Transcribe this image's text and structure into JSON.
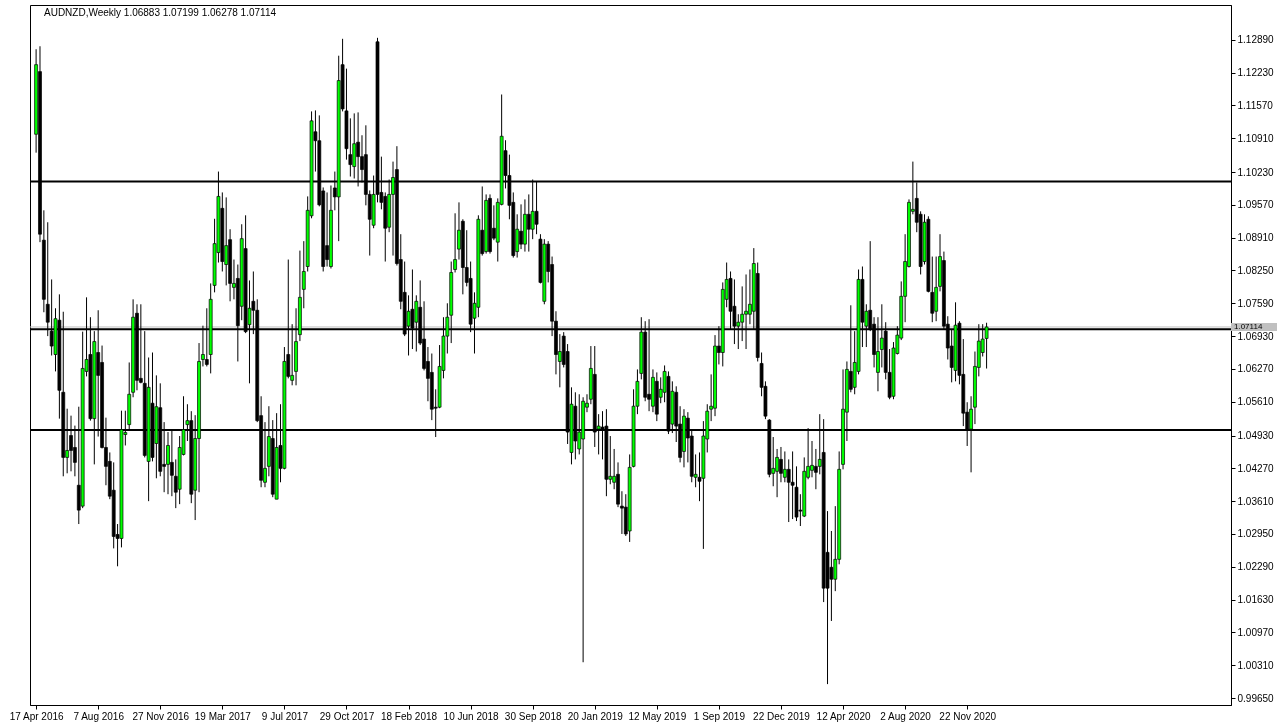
{
  "chart_data": {
    "type": "candlestick",
    "title": "AUDNZD,Weekly  1.06883 1.07199 1.06278 1.07114",
    "colors": [
      "#00ff00",
      "#000000",
      "#000000",
      "#000000",
      "#000000",
      "#00ff00",
      "#000000",
      "#000000",
      "#00ff00",
      "#000000",
      "#000000",
      "#000000",
      "#00ff00",
      "#00ff00",
      "#000000",
      "#00ff00",
      "#000000",
      "#000000",
      "#000000",
      "#000000",
      "#000000",
      "#000000",
      "#00ff00",
      "#00ff00",
      "#00ff00",
      "#00ff00",
      "#000000",
      "#000000",
      "#000000",
      "#00ff00",
      "#000000",
      "#00ff00",
      "#000000",
      "#000000",
      "#00ff00",
      "#000000",
      "#000000",
      "#00ff00",
      "#00ff00",
      "#00ff00",
      "#000000",
      "#00ff00",
      "#00ff00",
      "#00ff00",
      "#000000",
      "#00ff00",
      "#00ff00",
      "#00ff00",
      "#000000",
      "#00ff00",
      "#000000",
      "#00ff00",
      "#000000",
      "#00ff00",
      "#000000",
      "#00ff00",
      "#000000",
      "#000000",
      "#000000",
      "#00ff00",
      "#00ff00",
      "#000000",
      "#00ff00",
      "#000000",
      "#00ff00",
      "#000000",
      "#00ff00",
      "#00ff00",
      "#00ff00",
      "#00ff00",
      "#00ff00",
      "#00ff00",
      "#000000",
      "#000000",
      "#000000",
      "#000000",
      "#00ff00",
      "#000000",
      "#00ff00",
      "#000000",
      "#000000",
      "#000000",
      "#00ff00",
      "#000000",
      "#000000",
      "#000000",
      "#000000",
      "#00ff00",
      "#000000",
      "#000000",
      "#000000",
      "#00ff00",
      "#00ff00",
      "#000000",
      "#000000",
      "#000000",
      "#00ff00",
      "#000000",
      "#00ff00",
      "#000000",
      "#000000",
      "#000000",
      "#000000",
      "#000000",
      "#00ff00",
      "#00ff00",
      "#00ff00",
      "#00ff00",
      "#00ff00",
      "#00ff00",
      "#000000",
      "#000000",
      "#000000",
      "#00ff00",
      "#00ff00",
      "#000000",
      "#00ff00",
      "#000000",
      "#000000",
      "#00ff00",
      "#00ff00",
      "#000000",
      "#000000",
      "#000000",
      "#00ff00",
      "#000000",
      "#00ff00",
      "#000000",
      "#00ff00",
      "#000000",
      "#000000",
      "#00ff00",
      "#000000",
      "#000000",
      "#000000",
      "#00ff00",
      "#000000",
      "#000000",
      "#00ff00",
      "#000000",
      "#00ff00",
      "#00ff00",
      "#00ff00",
      "#00ff00",
      "#000000",
      "#00ff00",
      "#000000",
      "#000000",
      "#00ff00",
      "#00ff00",
      "#000000",
      "#000000",
      "#000000",
      "#00ff00",
      "#00ff00",
      "#00ff00",
      "#00ff00",
      "#000000",
      "#000000",
      "#00ff00",
      "#000000",
      "#00ff00",
      "#00ff00",
      "#000000",
      "#00ff00",
      "#000000",
      "#000000",
      "#00ff00",
      "#000000",
      "#000000",
      "#00ff00",
      "#000000",
      "#00ff00",
      "#00ff00",
      "#00ff00",
      "#00ff00",
      "#000000",
      "#00ff00",
      "#00ff00",
      "#000000",
      "#000000",
      "#00ff00",
      "#00ff00",
      "#00ff00",
      "#00ff00",
      "#00ff00",
      "#000000",
      "#000000",
      "#000000",
      "#000000",
      "#00ff00",
      "#00ff00",
      "#000000",
      "#00ff00",
      "#000000",
      "#000000",
      "#000000",
      "#000000",
      "#00ff00",
      "#00ff00",
      "#00ff00",
      "#000000",
      "#00ff00",
      "#000000",
      "#000000",
      "#000000",
      "#00ff00",
      "#00ff00",
      "#00ff00",
      "#00ff00",
      "#000000",
      "#00ff00",
      "#00ff00",
      "#000000",
      "#00ff00",
      "#000000",
      "#000000",
      "#00ff00",
      "#00ff00",
      "#000000",
      "#000000",
      "#00ff00",
      "#00ff00",
      "#00ff00",
      "#00ff00",
      "#00ff00",
      "#00ff00",
      "#000000",
      "#000000",
      "#00ff00",
      "#000000",
      "#000000",
      "#00ff00",
      "#00ff00",
      "#000000",
      "#000000",
      "#000000",
      "#00ff00",
      "#000000",
      "#000000",
      "#000000",
      "#00ff00",
      "#00ff00",
      "#00ff00",
      "#00ff00",
      "#00ff00"
    ],
    "grid": false,
    "xlim": [
      "2016-04-15",
      "2022-03-04"
    ],
    "xticks": [
      {
        "value": "2016-04-17",
        "label": "17 Apr 2016"
      },
      {
        "value": "2016-08-07",
        "label": "7 Aug 2016"
      },
      {
        "value": "2016-11-27",
        "label": "27 Nov 2016"
      },
      {
        "value": "2017-03-19",
        "label": "19 Mar 2017"
      },
      {
        "value": "2017-07-09",
        "label": "9 Jul 2017"
      },
      {
        "value": "2017-10-29",
        "label": "29 Oct 2017"
      },
      {
        "value": "2018-02-18",
        "label": "18 Feb 2018"
      },
      {
        "value": "2018-06-10",
        "label": "10 Jun 2018"
      },
      {
        "value": "2018-09-30",
        "label": "30 Sep 2018"
      },
      {
        "value": "2019-01-20",
        "label": "20 Jan 2019"
      },
      {
        "value": "2019-05-12",
        "label": "12 May 2019"
      },
      {
        "value": "2019-09-01",
        "label": "1 Sep 2019"
      },
      {
        "value": "2019-12-22",
        "label": "22 Dec 2019"
      },
      {
        "value": "2020-04-12",
        "label": "12 Apr 2020"
      },
      {
        "value": "2020-08-02",
        "label": "2 Aug 2020"
      },
      {
        "value": "2020-11-22",
        "label": "22 Nov 2020"
      }
    ],
    "ylim": [
      0.9951,
      1.1359
    ],
    "yticks": [
      {
        "value": 0.9965,
        "label": "0.99650"
      },
      {
        "value": 1.0031,
        "label": "1.00310"
      },
      {
        "value": 1.0097,
        "label": "1.00970"
      },
      {
        "value": 1.0163,
        "label": "1.01630"
      },
      {
        "value": 1.0229,
        "label": "1.02290"
      },
      {
        "value": 1.0295,
        "label": "1.02950"
      },
      {
        "value": 1.0361,
        "label": "1.03610"
      },
      {
        "value": 1.0427,
        "label": "1.04270"
      },
      {
        "value": 1.0493,
        "label": "1.04930"
      },
      {
        "value": 1.0561,
        "label": "1.05610"
      },
      {
        "value": 1.0627,
        "label": "1.06270"
      },
      {
        "value": 1.0693,
        "label": "1.06930"
      },
      {
        "value": 1.0759,
        "label": "1.07590"
      },
      {
        "value": 1.0825,
        "label": "1.08250"
      },
      {
        "value": 1.0891,
        "label": "1.08910"
      },
      {
        "value": 1.0957,
        "label": "1.09570"
      },
      {
        "value": 1.1023,
        "label": "1.10230"
      },
      {
        "value": 1.1091,
        "label": "1.10910"
      },
      {
        "value": 1.1157,
        "label": "1.11570"
      },
      {
        "value": 1.1223,
        "label": "1.12230"
      },
      {
        "value": 1.1289,
        "label": "1.12890"
      }
    ],
    "ref_lines": [
      {
        "axis": "y",
        "value": 1.1004
      },
      {
        "axis": "y",
        "value": 1.0707
      },
      {
        "axis": "y",
        "value": 1.0504
      },
      {
        "axis": "y",
        "value": 1.07114,
        "label": "1.07114",
        "color": "#c0c0c0"
      }
    ],
    "x": [
      "2016-04-17",
      "2016-04-24",
      "2016-05-01",
      "2016-05-08",
      "2016-05-15",
      "2016-05-22",
      "2016-05-29",
      "2016-06-05",
      "2016-06-12",
      "2016-06-19",
      "2016-06-26",
      "2016-07-03",
      "2016-07-10",
      "2016-07-17",
      "2016-07-24",
      "2016-07-31",
      "2016-08-07",
      "2016-08-14",
      "2016-08-21",
      "2016-08-28",
      "2016-09-04",
      "2016-09-11",
      "2016-09-18",
      "2016-09-25",
      "2016-10-02",
      "2016-10-09",
      "2016-10-16",
      "2016-10-23",
      "2016-10-30",
      "2016-11-06",
      "2016-11-13",
      "2016-11-20",
      "2016-11-27",
      "2016-12-04",
      "2016-12-11",
      "2016-12-18",
      "2016-12-25",
      "2017-01-01",
      "2017-01-08",
      "2017-01-15",
      "2017-01-22",
      "2017-01-29",
      "2017-02-05",
      "2017-02-12",
      "2017-02-19",
      "2017-02-26",
      "2017-03-05",
      "2017-03-12",
      "2017-03-19",
      "2017-03-26",
      "2017-04-02",
      "2017-04-09",
      "2017-04-16",
      "2017-04-23",
      "2017-04-30",
      "2017-05-07",
      "2017-05-14",
      "2017-05-21",
      "2017-05-28",
      "2017-06-04",
      "2017-06-11",
      "2017-06-18",
      "2017-06-25",
      "2017-07-02",
      "2017-07-09",
      "2017-07-16",
      "2017-07-23",
      "2017-07-30",
      "2017-08-06",
      "2017-08-13",
      "2017-08-20",
      "2017-08-27",
      "2017-09-03",
      "2017-09-10",
      "2017-09-17",
      "2017-09-24",
      "2017-10-01",
      "2017-10-08",
      "2017-10-15",
      "2017-10-22",
      "2017-10-29",
      "2017-11-05",
      "2017-11-12",
      "2017-11-19",
      "2017-11-26",
      "2017-12-03",
      "2017-12-10",
      "2017-12-17",
      "2017-12-24",
      "2017-12-31",
      "2018-01-07",
      "2018-01-14",
      "2018-01-21",
      "2018-01-28",
      "2018-02-04",
      "2018-02-11",
      "2018-02-18",
      "2018-02-25",
      "2018-03-04",
      "2018-03-11",
      "2018-03-18",
      "2018-03-25",
      "2018-04-01",
      "2018-04-08",
      "2018-04-15",
      "2018-04-22",
      "2018-04-29",
      "2018-05-06",
      "2018-05-13",
      "2018-05-20",
      "2018-05-27",
      "2018-06-03",
      "2018-06-10",
      "2018-06-17",
      "2018-06-24",
      "2018-07-01",
      "2018-07-08",
      "2018-07-15",
      "2018-07-22",
      "2018-07-29",
      "2018-08-05",
      "2018-08-12",
      "2018-08-19",
      "2018-08-26",
      "2018-09-02",
      "2018-09-09",
      "2018-09-16",
      "2018-09-23",
      "2018-09-30",
      "2018-10-07",
      "2018-10-14",
      "2018-10-21",
      "2018-10-28",
      "2018-11-04",
      "2018-11-11",
      "2018-11-18",
      "2018-11-25",
      "2018-12-02",
      "2018-12-09",
      "2018-12-16",
      "2018-12-23",
      "2018-12-30",
      "2019-01-06",
      "2019-01-13",
      "2019-01-20",
      "2019-01-27",
      "2019-02-03",
      "2019-02-10",
      "2019-02-17",
      "2019-02-24",
      "2019-03-03",
      "2019-03-10",
      "2019-03-17",
      "2019-03-24",
      "2019-03-31",
      "2019-04-07",
      "2019-04-14",
      "2019-04-21",
      "2019-04-28",
      "2019-05-05",
      "2019-05-12",
      "2019-05-19",
      "2019-05-26",
      "2019-06-02",
      "2019-06-09",
      "2019-06-16",
      "2019-06-23",
      "2019-06-30",
      "2019-07-07",
      "2019-07-14",
      "2019-07-21",
      "2019-07-28",
      "2019-08-04",
      "2019-08-11",
      "2019-08-18",
      "2019-08-25",
      "2019-09-01",
      "2019-09-08",
      "2019-09-15",
      "2019-09-22",
      "2019-09-29",
      "2019-10-06",
      "2019-10-13",
      "2019-10-20",
      "2019-10-27",
      "2019-11-03",
      "2019-11-10",
      "2019-11-17",
      "2019-11-24",
      "2019-12-01",
      "2019-12-08",
      "2019-12-15",
      "2019-12-22",
      "2019-12-29",
      "2020-01-05",
      "2020-01-12",
      "2020-01-19",
      "2020-01-26",
      "2020-02-02",
      "2020-02-09",
      "2020-02-16",
      "2020-02-23",
      "2020-03-01",
      "2020-03-08",
      "2020-03-15",
      "2020-03-22",
      "2020-03-29",
      "2020-04-05",
      "2020-04-12",
      "2020-04-19",
      "2020-04-26",
      "2020-05-03",
      "2020-05-10",
      "2020-05-17",
      "2020-05-24",
      "2020-05-31",
      "2020-06-07",
      "2020-06-14",
      "2020-06-21",
      "2020-06-28",
      "2020-07-05",
      "2020-07-12",
      "2020-07-19",
      "2020-07-26",
      "2020-08-02",
      "2020-08-09",
      "2020-08-16",
      "2020-08-23",
      "2020-08-30",
      "2020-09-06",
      "2020-09-13",
      "2020-09-20",
      "2020-09-27",
      "2020-10-04",
      "2020-10-11",
      "2020-10-18",
      "2020-10-25",
      "2020-11-01",
      "2020-11-08",
      "2020-11-15",
      "2020-11-22",
      "2020-11-29",
      "2020-12-06",
      "2020-12-13",
      "2020-12-20",
      "2020-12-27"
    ],
    "ohlc": [
      [
        1.1099,
        1.127,
        1.1062,
        1.1239
      ],
      [
        1.1225,
        1.1276,
        1.0882,
        1.0898
      ],
      [
        1.0886,
        1.0946,
        1.0741,
        1.0767
      ],
      [
        1.0757,
        1.0922,
        1.0693,
        1.0721
      ],
      [
        1.0703,
        1.0807,
        1.0654,
        1.0673
      ],
      [
        1.0656,
        1.0749,
        1.0622,
        1.0728
      ],
      [
        1.0725,
        1.0777,
        1.0527,
        1.0584
      ],
      [
        1.058,
        1.0742,
        1.0411,
        1.0449
      ],
      [
        1.0449,
        1.0547,
        1.0417,
        1.0463
      ],
      [
        1.0493,
        1.0533,
        1.0421,
        1.0463
      ],
      [
        1.0469,
        1.0513,
        1.0411,
        1.0439
      ],
      [
        1.0393,
        1.0551,
        1.0315,
        1.0343
      ],
      [
        1.0351,
        1.0702,
        1.0347,
        1.0628
      ],
      [
        1.0622,
        1.0771,
        1.0612,
        1.0646
      ],
      [
        1.0656,
        1.0731,
        1.0523,
        1.0527
      ],
      [
        1.0527,
        1.0703,
        1.0435,
        1.0682
      ],
      [
        1.066,
        1.0745,
        1.0491,
        1.0614
      ],
      [
        1.064,
        1.0674,
        1.0467,
        1.0469
      ],
      [
        1.0469,
        1.0529,
        1.0393,
        1.0431
      ],
      [
        1.0441,
        1.0459,
        1.0365,
        1.0371
      ],
      [
        1.0383,
        1.0439,
        1.0266,
        1.029
      ],
      [
        1.0294,
        1.0315,
        1.023,
        1.0286
      ],
      [
        1.0286,
        1.0543,
        1.0268,
        1.0505
      ],
      [
        1.0495,
        1.0543,
        1.0473,
        1.0499
      ],
      [
        1.0515,
        1.064,
        1.0505,
        1.0576
      ],
      [
        1.058,
        1.0767,
        1.057,
        1.0731
      ],
      [
        1.0739,
        1.0757,
        1.0584,
        1.0604
      ],
      [
        1.0608,
        1.0757,
        1.0598,
        1.06
      ],
      [
        1.0598,
        1.0703,
        1.0449,
        1.0453
      ],
      [
        1.0441,
        1.065,
        1.0361,
        1.059
      ],
      [
        1.0558,
        1.066,
        1.0441,
        1.0449
      ],
      [
        1.0477,
        1.0614,
        1.0407,
        1.0551
      ],
      [
        1.0549,
        1.0598,
        1.0411,
        1.0421
      ],
      [
        1.0435,
        1.052,
        1.0379,
        1.0431
      ],
      [
        1.0435,
        1.05,
        1.0375,
        1.0473
      ],
      [
        1.0439,
        1.0506,
        1.0371,
        1.0413
      ],
      [
        1.0411,
        1.0445,
        1.0347,
        1.0379
      ],
      [
        1.0385,
        1.0492,
        1.0355,
        1.0469
      ],
      [
        1.0455,
        1.0572,
        1.0453,
        1.0505
      ],
      [
        1.0515,
        1.0556,
        1.0482,
        1.0523
      ],
      [
        1.0523,
        1.0542,
        1.0357,
        1.0375
      ],
      [
        1.0383,
        1.0534,
        1.0323,
        1.0487
      ],
      [
        1.0487,
        1.0679,
        1.0379,
        1.0642
      ],
      [
        1.0646,
        1.0714,
        1.0632,
        1.0656
      ],
      [
        1.0646,
        1.0749,
        1.0632,
        1.0636
      ],
      [
        1.0656,
        1.0799,
        1.0618,
        1.0767
      ],
      [
        1.0795,
        1.0929,
        1.0781,
        1.0879
      ],
      [
        1.0861,
        1.1024,
        1.0841,
        1.0974
      ],
      [
        1.095,
        1.0982,
        1.0823,
        1.0843
      ],
      [
        1.0837,
        1.0972,
        1.0795,
        1.0875
      ],
      [
        1.0887,
        1.0908,
        1.0763,
        1.0799
      ],
      [
        1.0791,
        1.0847,
        1.0767,
        1.0799
      ],
      [
        1.0809,
        1.0837,
        1.0642,
        1.0714
      ],
      [
        1.0753,
        1.0918,
        1.0725,
        1.0889
      ],
      [
        1.0869,
        1.0936,
        1.0699,
        1.0702
      ],
      [
        1.0716,
        1.0805,
        1.0598,
        1.0749
      ],
      [
        1.0763,
        1.0823,
        1.0697,
        1.0745
      ],
      [
        1.0745,
        1.0767,
        1.052,
        1.0523
      ],
      [
        1.0533,
        1.0572,
        1.0389,
        1.0403
      ],
      [
        1.0399,
        1.052,
        1.0389,
        1.0427
      ],
      [
        1.0431,
        1.0552,
        1.0411,
        1.0491
      ],
      [
        1.0487,
        1.0524,
        1.0369,
        1.0375
      ],
      [
        1.0365,
        1.0538,
        1.0365,
        1.0469
      ],
      [
        1.0473,
        1.0556,
        1.0399,
        1.0427
      ],
      [
        1.0427,
        1.0671,
        1.0425,
        1.0642
      ],
      [
        1.0656,
        1.0847,
        1.0608,
        1.0612
      ],
      [
        1.0604,
        1.0717,
        1.0594,
        1.0614
      ],
      [
        1.0622,
        1.0749,
        1.0594,
        1.0682
      ],
      [
        1.0696,
        1.0865,
        1.0683,
        1.0771
      ],
      [
        1.0787,
        1.0884,
        1.0749,
        1.0823
      ],
      [
        1.0833,
        1.0974,
        1.0823,
        1.0946
      ],
      [
        1.0935,
        1.1145,
        1.093,
        1.1126
      ],
      [
        1.1104,
        1.1147,
        1.1024,
        1.1086
      ],
      [
        1.1086,
        1.1137,
        1.0954,
        1.0957
      ],
      [
        1.0985,
        1.0992,
        1.0823,
        1.0833
      ],
      [
        1.0875,
        1.0982,
        1.0833,
        1.0847
      ],
      [
        1.0833,
        1.0996,
        1.0829,
        1.0946
      ],
      [
        1.0991,
        1.1024,
        1.0946,
        1.0973
      ],
      [
        1.0973,
        1.1257,
        1.0884,
        1.1207
      ],
      [
        1.1239,
        1.1291,
        1.1145,
        1.115
      ],
      [
        1.1146,
        1.1231,
        1.1048,
        1.107
      ],
      [
        1.1058,
        1.1131,
        1.1014,
        1.1038
      ],
      [
        1.1034,
        1.1141,
        1.101,
        1.108
      ],
      [
        1.1083,
        1.1143,
        1.0994,
        1.1054
      ],
      [
        1.1054,
        1.1097,
        1.1002,
        1.1028
      ],
      [
        1.1058,
        1.1117,
        1.0956,
        1.0978
      ],
      [
        1.0978,
        1.0986,
        1.0855,
        1.0928
      ],
      [
        1.0916,
        1.1016,
        1.091,
        1.0978
      ],
      [
        1.1285,
        1.1293,
        1.0962,
        1.0978
      ],
      [
        1.0982,
        1.1054,
        1.0948,
        1.0962
      ],
      [
        1.0974,
        1.0982,
        1.0843,
        1.091
      ],
      [
        1.0912,
        1.1008,
        1.0902,
        1.0978
      ],
      [
        1.0978,
        1.1044,
        1.0855,
        1.1012
      ],
      [
        1.1028,
        1.1075,
        1.0835,
        1.0839
      ],
      [
        1.0847,
        1.0898,
        1.0747,
        1.0763
      ],
      [
        1.0781,
        1.0843,
        1.0693,
        1.0697
      ],
      [
        1.0713,
        1.0775,
        1.0654,
        1.0743
      ],
      [
        1.0747,
        1.0827,
        1.0667,
        1.0709
      ],
      [
        1.0721,
        1.0775,
        1.0662,
        1.0763
      ],
      [
        1.0751,
        1.0805,
        1.0675,
        1.0679
      ],
      [
        1.0687,
        1.0763,
        1.0624,
        1.0628
      ],
      [
        1.0642,
        1.0671,
        1.0562,
        1.0608
      ],
      [
        1.062,
        1.0658,
        1.0524,
        1.0546
      ],
      [
        1.055,
        1.0586,
        1.049,
        1.0548
      ],
      [
        1.055,
        1.0675,
        1.0548,
        1.0632
      ],
      [
        1.0624,
        1.0731,
        1.0608,
        1.0693
      ],
      [
        1.0693,
        1.0759,
        1.0658,
        1.0731
      ],
      [
        1.0735,
        1.0843,
        1.0679,
        1.0821
      ],
      [
        1.0827,
        1.094,
        1.0821,
        1.0847
      ],
      [
        1.0868,
        1.0962,
        1.0847,
        1.0906
      ],
      [
        1.0924,
        1.0928,
        1.0777,
        1.0831
      ],
      [
        1.0831,
        1.0906,
        1.0793,
        1.0801
      ],
      [
        1.0809,
        1.0843,
        1.0701,
        1.0717
      ],
      [
        1.0729,
        1.0781,
        1.0658,
        1.0759
      ],
      [
        1.0751,
        1.0936,
        1.0731,
        1.0928
      ],
      [
        1.0906,
        1.0994,
        1.0855,
        1.0859
      ],
      [
        1.0863,
        1.0978,
        1.0859,
        1.0966
      ],
      [
        1.097,
        1.0978,
        1.0859,
        1.0863
      ],
      [
        1.091,
        1.0956,
        1.0886,
        1.089
      ],
      [
        1.0882,
        1.097,
        1.0843,
        1.0962
      ],
      [
        1.0958,
        1.1179,
        1.0956,
        1.1095
      ],
      [
        1.1066,
        1.1087,
        1.099,
        1.1016
      ],
      [
        1.1016,
        1.1058,
        1.0928,
        1.0956
      ],
      [
        1.0962,
        1.0982,
        1.0851,
        1.0855
      ],
      [
        1.0863,
        1.0938,
        1.0851,
        1.0908
      ],
      [
        1.0904,
        1.0958,
        1.0868,
        1.0878
      ],
      [
        1.0878,
        1.0968,
        1.0863,
        1.0938
      ],
      [
        1.0938,
        1.0978,
        1.0863,
        1.0908
      ],
      [
        1.0908,
        1.1008,
        1.0888,
        1.0944
      ],
      [
        1.0944,
        1.1004,
        1.0898,
        1.0918
      ],
      [
        1.0888,
        1.0898,
        1.0799,
        1.0801
      ],
      [
        1.0763,
        1.0888,
        1.0757,
        1.0878
      ],
      [
        1.0878,
        1.0884,
        1.0801,
        1.0823
      ],
      [
        1.0837,
        1.0853,
        1.0693,
        1.0723
      ],
      [
        1.0723,
        1.0743,
        1.0616,
        1.0656
      ],
      [
        1.0642,
        1.0697,
        1.059,
        1.0662
      ],
      [
        1.0693,
        1.0701,
        1.063,
        1.0636
      ],
      [
        1.0662,
        1.0677,
        1.0476,
        1.05
      ],
      [
        1.0459,
        1.059,
        1.0435,
        1.0556
      ],
      [
        1.0552,
        1.058,
        1.0445,
        1.0482
      ],
      [
        1.0466,
        1.0576,
        1.0455,
        1.05
      ],
      [
        1.0486,
        1.057,
        1.0037,
        1.0562
      ],
      [
        1.055,
        1.0576,
        1.054,
        1.0558
      ],
      [
        1.0566,
        1.0673,
        1.0556,
        1.0628
      ],
      [
        1.0616,
        1.0673,
        1.047,
        1.05
      ],
      [
        1.0506,
        1.0536,
        1.0455,
        1.0512
      ],
      [
        1.051,
        1.0542,
        1.0445,
        1.0506
      ],
      [
        1.0512,
        1.0546,
        1.0371,
        1.0405
      ],
      [
        1.0405,
        1.0492,
        1.0395,
        1.0411
      ],
      [
        1.0399,
        1.0466,
        1.0385,
        1.0411
      ],
      [
        1.0415,
        1.0439,
        1.0349,
        1.0355
      ],
      [
        1.0351,
        1.0381,
        1.0295,
        1.0347
      ],
      [
        1.0349,
        1.0375,
        1.0291,
        1.0295
      ],
      [
        1.0301,
        1.0455,
        1.0279,
        1.0429
      ],
      [
        1.0431,
        1.0586,
        1.0429,
        1.0552
      ],
      [
        1.0552,
        1.0626,
        1.0536,
        1.0602
      ],
      [
        1.0618,
        1.0731,
        1.0606,
        1.0701
      ],
      [
        1.0701,
        1.0723,
        1.0562,
        1.057
      ],
      [
        1.0576,
        1.0727,
        1.0542,
        1.0566
      ],
      [
        1.0552,
        1.0626,
        1.054,
        1.061
      ],
      [
        1.0602,
        1.062,
        1.0522,
        1.0536
      ],
      [
        1.057,
        1.061,
        1.0558,
        1.0586
      ],
      [
        1.058,
        1.0634,
        1.056,
        1.0622
      ],
      [
        1.0612,
        1.0622,
        1.0496,
        1.0502
      ],
      [
        1.0516,
        1.0602,
        1.0498,
        1.0582
      ],
      [
        1.058,
        1.0592,
        1.048,
        1.0512
      ],
      [
        1.0516,
        1.0552,
        1.0439,
        1.0449
      ],
      [
        1.0461,
        1.0546,
        1.0429,
        1.0532
      ],
      [
        1.0528,
        1.054,
        1.0439,
        1.0488
      ],
      [
        1.0492,
        1.0506,
        1.0399,
        1.0411
      ],
      [
        1.0409,
        1.0455,
        1.0389,
        1.0415
      ],
      [
        1.0409,
        1.0459,
        1.0361,
        1.0401
      ],
      [
        1.0407,
        1.0522,
        1.0265,
        1.0492
      ],
      [
        1.0486,
        1.0556,
        1.0459,
        1.0542
      ],
      [
        1.0546,
        1.0616,
        1.0522,
        1.0552
      ],
      [
        1.0548,
        1.0695,
        1.0532,
        1.0673
      ],
      [
        1.0673,
        1.0713,
        1.0636,
        1.066
      ],
      [
        1.066,
        1.0801,
        1.0632,
        1.0787
      ],
      [
        1.0767,
        1.0841,
        1.0751,
        1.0807
      ],
      [
        1.0809,
        1.0823,
        1.0707,
        1.0743
      ],
      [
        1.0753,
        1.0807,
        1.0677,
        1.0713
      ],
      [
        1.0713,
        1.0737,
        1.0667,
        1.0721
      ],
      [
        1.0721,
        1.0793,
        1.0683,
        1.0737
      ],
      [
        1.0737,
        1.0817,
        1.0667,
        1.0743
      ],
      [
        1.0737,
        1.0827,
        1.0717,
        1.0757
      ],
      [
        1.0743,
        1.087,
        1.0707,
        1.0839
      ],
      [
        1.0819,
        1.0841,
        1.0642,
        1.065
      ],
      [
        1.0638,
        1.066,
        1.0572,
        1.059
      ],
      [
        1.0592,
        1.0602,
        1.0526,
        1.0532
      ],
      [
        1.0524,
        1.0526,
        1.0409,
        1.0415
      ],
      [
        1.0417,
        1.049,
        1.0391,
        1.0427
      ],
      [
        1.0421,
        1.0466,
        1.0369,
        1.0449
      ],
      [
        1.0445,
        1.047,
        1.0399,
        1.0417
      ],
      [
        1.0409,
        1.0461,
        1.0399,
        1.0425
      ],
      [
        1.0425,
        1.0445,
        1.0319,
        1.0399
      ],
      [
        1.0399,
        1.0461,
        1.0325,
        1.0393
      ],
      [
        1.0389,
        1.0431,
        1.0321,
        1.0329
      ],
      [
        1.0343,
        1.0375,
        1.0311,
        1.0341
      ],
      [
        1.0331,
        1.0449,
        1.0329,
        1.0421
      ],
      [
        1.0409,
        1.0508,
        1.0405,
        1.0431
      ],
      [
        1.0423,
        1.0482,
        1.0409,
        1.0433
      ],
      [
        1.0431,
        1.0466,
        1.0385,
        1.0419
      ],
      [
        1.0431,
        1.0536,
        1.0415,
        1.0445
      ],
      [
        1.0459,
        1.0526,
        1.0158,
        1.0186
      ],
      [
        1.0258,
        1.0341,
        0.9993,
        1.0186
      ],
      [
        1.0228,
        1.0301,
        1.012,
        1.0204
      ],
      [
        1.0204,
        1.0351,
        1.018,
        1.0244
      ],
      [
        1.0244,
        1.0461,
        1.0234,
        1.0425
      ],
      [
        1.0435,
        1.0626,
        1.0425,
        1.0546
      ],
      [
        1.054,
        1.0642,
        1.0482,
        1.0626
      ],
      [
        1.0622,
        1.0755,
        1.058,
        1.0586
      ],
      [
        1.059,
        1.0703,
        1.0576,
        1.064
      ],
      [
        1.0622,
        1.0827,
        1.0616,
        1.0807
      ],
      [
        1.0807,
        1.0833,
        1.0671,
        1.0721
      ],
      [
        1.0713,
        1.0757,
        1.0671,
        1.0743
      ],
      [
        1.0745,
        1.0884,
        1.0703,
        1.0707
      ],
      [
        1.0717,
        1.0731,
        1.063,
        1.0656
      ],
      [
        1.062,
        1.0731,
        1.0582,
        1.0662
      ],
      [
        1.0666,
        1.0757,
        1.063,
        1.0689
      ],
      [
        1.0703,
        1.0721,
        1.0606,
        1.062
      ],
      [
        1.062,
        1.0667,
        1.0566,
        1.057
      ],
      [
        1.0572,
        1.0681,
        1.0566,
        1.0669
      ],
      [
        1.0658,
        1.0713,
        1.0656,
        1.0695
      ],
      [
        1.0689,
        1.0803,
        1.0685,
        1.0773
      ],
      [
        1.0773,
        1.0898,
        1.0721,
        1.0843
      ],
      [
        1.0833,
        1.0968,
        1.0831,
        1.0962
      ],
      [
        1.0944,
        1.1044,
        1.0938,
        1.0948
      ],
      [
        1.097,
        1.1002,
        1.0902,
        1.0922
      ],
      [
        1.0938,
        1.0944,
        1.0817,
        1.0833
      ],
      [
        1.0843,
        1.0938,
        1.0837,
        1.0922
      ],
      [
        1.0928,
        1.0934,
        1.0781,
        1.0783
      ],
      [
        1.0781,
        1.0853,
        1.0721,
        1.0739
      ],
      [
        1.0743,
        1.0853,
        1.0723,
        1.0791
      ],
      [
        1.0793,
        1.0898,
        1.0783,
        1.0853
      ],
      [
        1.0845,
        1.0863,
        1.0707,
        1.0713
      ],
      [
        1.0717,
        1.0733,
        1.0646,
        1.0669
      ],
      [
        1.0673,
        1.0707,
        1.06,
        1.063
      ],
      [
        1.0624,
        1.0761,
        1.0602,
        1.0715
      ],
      [
        1.0719,
        1.0723,
        1.0596,
        1.0614
      ],
      [
        1.0616,
        1.0687,
        1.0512,
        1.0538
      ],
      [
        1.054,
        1.056,
        1.0472,
        1.0506
      ],
      [
        1.0506,
        1.0572,
        1.0419,
        1.0546
      ],
      [
        1.055,
        1.0662,
        1.0516,
        1.0632
      ],
      [
        1.063,
        1.0717,
        1.0612,
        1.0683
      ],
      [
        1.066,
        1.0717,
        1.0652,
        1.0687
      ],
      [
        1.06883,
        1.07199,
        1.06278,
        1.07114
      ]
    ]
  }
}
